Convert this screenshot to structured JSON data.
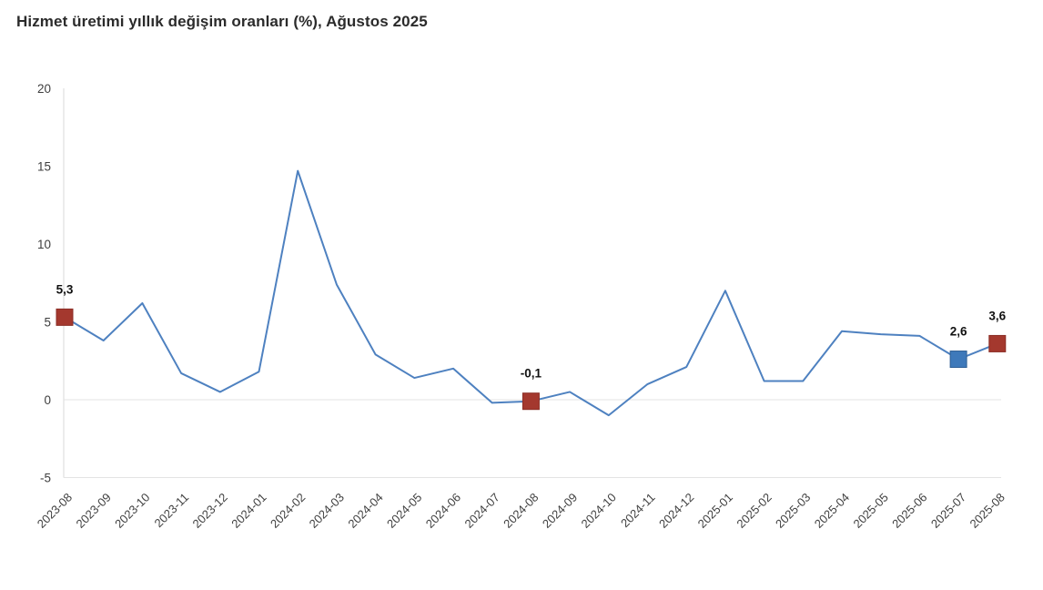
{
  "chart_data": {
    "type": "line",
    "title": "Hizmet üretimi yıllık değişim oranları (%), Ağustos 2025",
    "xlabel": "",
    "ylabel": "",
    "ylim": [
      -5,
      20
    ],
    "yticks": [
      20,
      15,
      10,
      5,
      0,
      -5
    ],
    "grid": "zero-line and bottom border only, no other gridlines",
    "legend": "none",
    "categories": [
      "2023-08",
      "2023-09",
      "2023-10",
      "2023-11",
      "2023-12",
      "2024-01",
      "2024-02",
      "2024-03",
      "2024-04",
      "2024-05",
      "2024-06",
      "2024-07",
      "2024-08",
      "2024-09",
      "2024-10",
      "2024-11",
      "2024-12",
      "2025-01",
      "2025-02",
      "2025-03",
      "2025-04",
      "2025-05",
      "2025-06",
      "2025-07",
      "2025-08"
    ],
    "values": [
      5.3,
      3.8,
      6.2,
      1.7,
      0.5,
      1.8,
      14.7,
      7.4,
      2.9,
      1.4,
      2.0,
      -0.2,
      -0.1,
      0.5,
      -1.0,
      1.0,
      2.1,
      7.0,
      1.2,
      1.2,
      4.4,
      4.2,
      4.1,
      2.6,
      3.6
    ],
    "marked_points": [
      {
        "category": "2023-08",
        "value": 5.3,
        "label": "5,3",
        "marker_color": "#a4382e",
        "marker_border": "#8b2d25"
      },
      {
        "category": "2024-08",
        "value": -0.1,
        "label": "-0,1",
        "marker_color": "#a4382e",
        "marker_border": "#8b2d25"
      },
      {
        "category": "2025-07",
        "value": 2.6,
        "label": "2,6",
        "marker_color": "#3e79ba",
        "marker_border": "#2f5f94"
      },
      {
        "category": "2025-08",
        "value": 3.6,
        "label": "3,6",
        "marker_color": "#a4382e",
        "marker_border": "#8b2d25"
      }
    ],
    "colors": {
      "line": "#4e81c0",
      "grid": "#e3e3e3",
      "axis": "#d8d8d8",
      "tick_text": "#3f3f3f",
      "title_text": "#2b2b2b",
      "data_label_text": "#111111",
      "background": "#ffffff"
    }
  }
}
